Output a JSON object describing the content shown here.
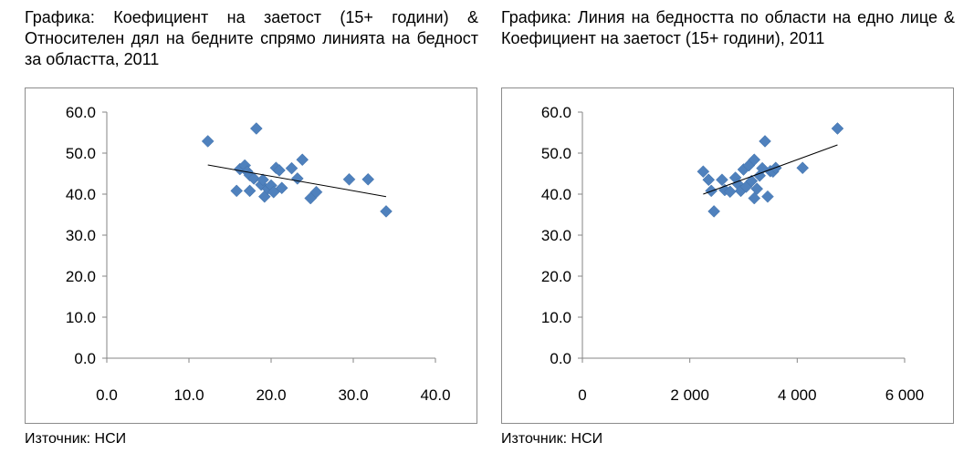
{
  "chart_data": [
    {
      "type": "scatter",
      "title": "Графика: Коефициент на заетост (15+ години) & Относителен дял на бедните спрямо линията на бедност за областта, 2011",
      "xlabel": "",
      "ylabel": "",
      "xlim": [
        0,
        40
      ],
      "ylim": [
        0,
        60
      ],
      "x_ticks": [
        "0.0",
        "10.0",
        "20.0",
        "30.0",
        "40.0"
      ],
      "y_ticks": [
        "0.0",
        "10.0",
        "20.0",
        "30.0",
        "40.0",
        "50.0",
        "60.0"
      ],
      "x_tick_values": [
        0,
        10,
        20,
        30,
        40
      ],
      "y_tick_values": [
        0,
        10,
        20,
        30,
        40,
        50,
        60
      ],
      "grid": false,
      "marker": "diamond",
      "marker_color": "#4f81bd",
      "trendline": {
        "type": "linear",
        "x": [
          12.3,
          34.0
        ],
        "y": [
          47.1,
          39.4
        ],
        "color": "#000000"
      },
      "points": [
        {
          "x": 12.3,
          "y": 52.9
        },
        {
          "x": 15.8,
          "y": 40.8
        },
        {
          "x": 16.2,
          "y": 46.1
        },
        {
          "x": 16.8,
          "y": 47.0
        },
        {
          "x": 17.1,
          "y": 45.5
        },
        {
          "x": 17.4,
          "y": 44.6
        },
        {
          "x": 17.4,
          "y": 40.8
        },
        {
          "x": 17.9,
          "y": 43.8
        },
        {
          "x": 18.2,
          "y": 56.0
        },
        {
          "x": 18.8,
          "y": 42.3
        },
        {
          "x": 19.0,
          "y": 43.5
        },
        {
          "x": 19.2,
          "y": 39.4
        },
        {
          "x": 19.6,
          "y": 41.3
        },
        {
          "x": 20.0,
          "y": 42.1
        },
        {
          "x": 20.3,
          "y": 40.5
        },
        {
          "x": 20.6,
          "y": 46.4
        },
        {
          "x": 21.0,
          "y": 45.8
        },
        {
          "x": 21.3,
          "y": 41.5
        },
        {
          "x": 22.5,
          "y": 46.3
        },
        {
          "x": 23.2,
          "y": 43.8
        },
        {
          "x": 23.8,
          "y": 48.4
        },
        {
          "x": 24.8,
          "y": 39.0
        },
        {
          "x": 25.5,
          "y": 40.5
        },
        {
          "x": 29.5,
          "y": 43.6
        },
        {
          "x": 31.8,
          "y": 43.6
        },
        {
          "x": 34.0,
          "y": 35.8
        }
      ],
      "source": "Източник: НСИ"
    },
    {
      "type": "scatter",
      "title": "Графика: Линия на бедността по области на едно лице & Коефициент на заетост (15+ години), 2011",
      "xlabel": "",
      "ylabel": "",
      "xlim": [
        0,
        6000
      ],
      "ylim": [
        0,
        60
      ],
      "x_ticks": [
        "0",
        "2 000",
        "4 000",
        "6 000"
      ],
      "y_ticks": [
        "0.0",
        "10.0",
        "20.0",
        "30.0",
        "40.0",
        "50.0",
        "60.0"
      ],
      "x_tick_values": [
        0,
        2000,
        4000,
        6000
      ],
      "y_tick_values": [
        0,
        10,
        20,
        30,
        40,
        50,
        60
      ],
      "grid": false,
      "marker": "diamond",
      "marker_color": "#4f81bd",
      "trendline": {
        "type": "linear",
        "x": [
          2250,
          4750
        ],
        "y": [
          40.0,
          52.0
        ],
        "color": "#000000"
      },
      "points": [
        {
          "x": 2250,
          "y": 45.5
        },
        {
          "x": 2350,
          "y": 43.5
        },
        {
          "x": 2400,
          "y": 40.8
        },
        {
          "x": 2450,
          "y": 35.8
        },
        {
          "x": 2600,
          "y": 43.5
        },
        {
          "x": 2650,
          "y": 41.0
        },
        {
          "x": 2750,
          "y": 40.6
        },
        {
          "x": 2850,
          "y": 44.0
        },
        {
          "x": 2900,
          "y": 42.4
        },
        {
          "x": 2950,
          "y": 40.8
        },
        {
          "x": 3000,
          "y": 46.0
        },
        {
          "x": 3050,
          "y": 41.8
        },
        {
          "x": 3100,
          "y": 47.0
        },
        {
          "x": 3150,
          "y": 43.2
        },
        {
          "x": 3200,
          "y": 48.4
        },
        {
          "x": 3200,
          "y": 39.0
        },
        {
          "x": 3250,
          "y": 41.3
        },
        {
          "x": 3300,
          "y": 44.5
        },
        {
          "x": 3350,
          "y": 46.3
        },
        {
          "x": 3400,
          "y": 52.9
        },
        {
          "x": 3450,
          "y": 39.4
        },
        {
          "x": 3500,
          "y": 45.6
        },
        {
          "x": 3550,
          "y": 45.5
        },
        {
          "x": 3600,
          "y": 46.4
        },
        {
          "x": 4100,
          "y": 46.4
        },
        {
          "x": 4750,
          "y": 56.0
        }
      ],
      "source": "Източник: НСИ"
    }
  ]
}
